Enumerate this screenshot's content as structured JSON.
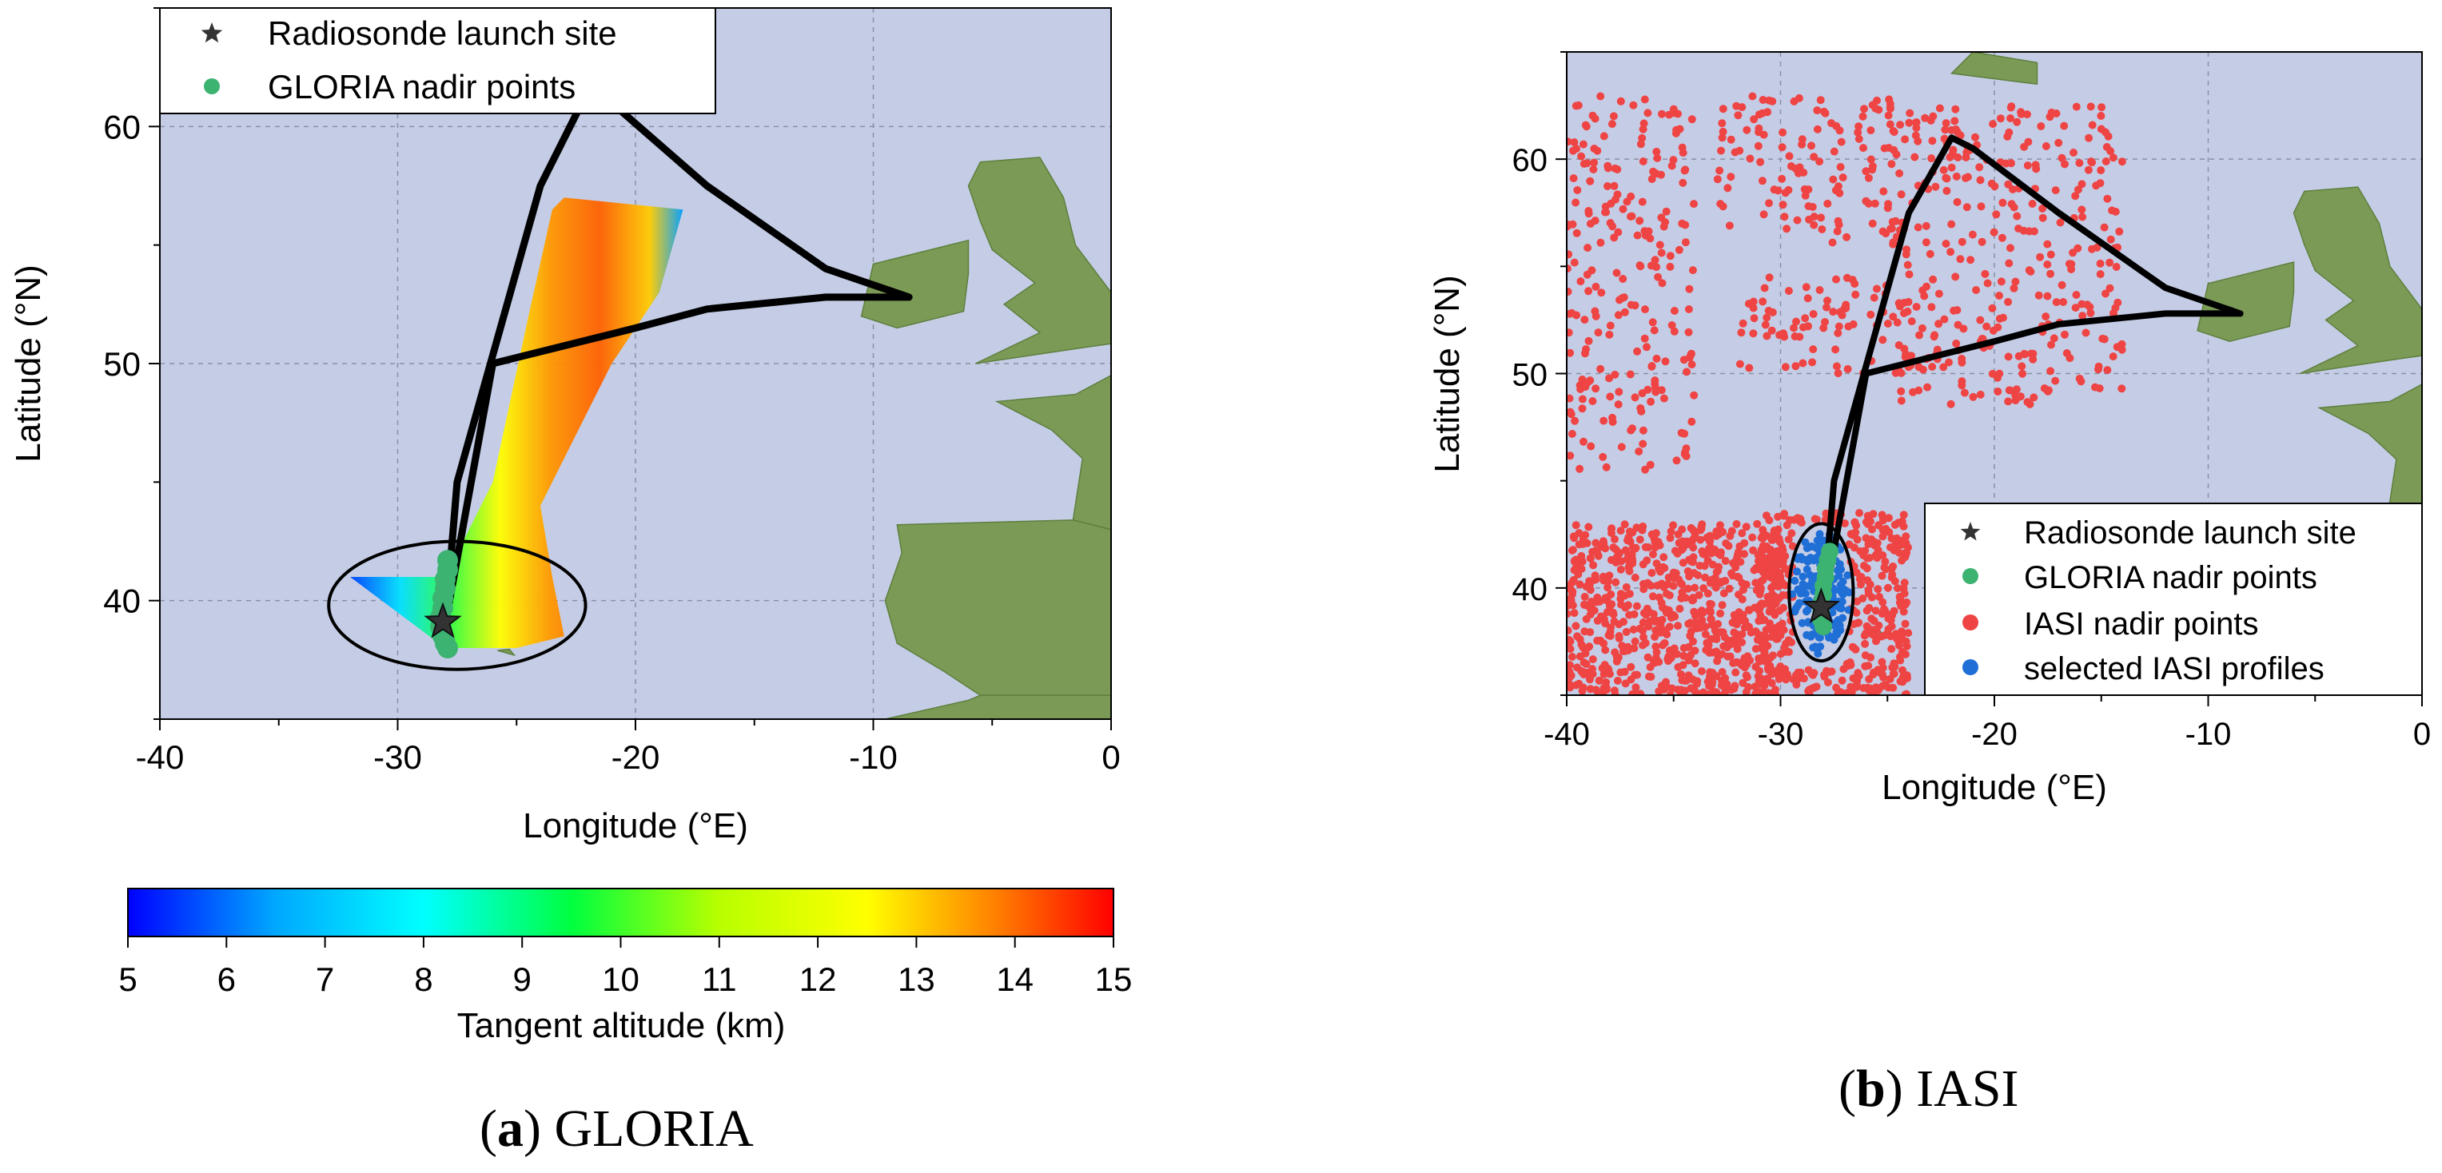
{
  "captions": {
    "a": {
      "letter": "a",
      "name": "GLORIA"
    },
    "b": {
      "letter": "b",
      "name": "IASI"
    }
  },
  "colors": {
    "ocean": "#c5cde6",
    "land": "#7a9a55",
    "track": "#000000",
    "gloria_nadir": "#3cb371",
    "iasi_nadir": "#ef4444",
    "selected_iasi": "#1f6fd6",
    "launch_site": "#333333"
  },
  "chart_data": [
    {
      "type": "scatter",
      "panel": "a",
      "title": "",
      "xlabel": "Longitude (°E)",
      "ylabel": "Latitude (°N)",
      "xlim": [
        -40,
        0
      ],
      "ylim": [
        35,
        65
      ],
      "xticks": [
        -40,
        -30,
        -20,
        -10,
        0
      ],
      "yticks": [
        40,
        50,
        60
      ],
      "grid": true,
      "legend_position": "top-left",
      "flight_track": {
        "lon": [
          -28,
          -27.5,
          -24,
          -22,
          -21,
          -17,
          -12,
          -8.5,
          -12,
          -17,
          -20,
          -26,
          -28
        ],
        "lat": [
          39,
          45,
          57.5,
          61.5,
          61,
          57.5,
          54,
          52.8,
          52.8,
          52.3,
          51.5,
          50,
          39
        ]
      },
      "tangent_swath": {
        "lon": [
          -32,
          -28,
          -26,
          -24.5,
          -23.5,
          -23,
          -18,
          -19,
          -21,
          -22.5,
          -24,
          -23.5,
          -23,
          -25,
          -26.5,
          -28
        ],
        "lat": [
          41,
          41,
          45,
          52,
          56.5,
          57,
          56.5,
          53,
          50,
          47,
          44,
          41,
          38.5,
          38,
          38,
          38
        ]
      },
      "series": [
        {
          "name": "Radiosonde launch site",
          "marker": "star",
          "points": [
            {
              "lon": -28.1,
              "lat": 39.1
            }
          ]
        },
        {
          "name": "GLORIA nadir points",
          "marker": "circle",
          "points": [
            {
              "lon": -27.9,
              "lat": 41.7
            },
            {
              "lon": -27.9,
              "lat": 41.3
            },
            {
              "lon": -28.0,
              "lat": 40.9
            },
            {
              "lon": -28.0,
              "lat": 40.5
            },
            {
              "lon": -28.1,
              "lat": 40.1
            },
            {
              "lon": -28.1,
              "lat": 39.7
            },
            {
              "lon": -28.2,
              "lat": 39.3
            },
            {
              "lon": -28.2,
              "lat": 38.9
            },
            {
              "lon": -28.1,
              "lat": 38.5
            },
            {
              "lon": -28.0,
              "lat": 38.2
            },
            {
              "lon": -27.9,
              "lat": 38.0
            }
          ]
        }
      ],
      "highlight_ellipse": {
        "center_lon": -27.5,
        "center_lat": 39.8,
        "radius_lon": 5.4,
        "radius_lat": 2.7
      },
      "colorbar": {
        "label": "Tangent altitude (km)",
        "min": 5,
        "max": 15,
        "ticks": [
          5,
          6,
          7,
          8,
          9,
          10,
          11,
          12,
          13,
          14,
          15
        ]
      }
    },
    {
      "type": "scatter",
      "panel": "b",
      "title": "",
      "xlabel": "Longitude (°E)",
      "ylabel": "Latitude (°N)",
      "xlim": [
        -40,
        0
      ],
      "ylim": [
        35,
        65
      ],
      "xticks": [
        -40,
        -30,
        -20,
        -10,
        0
      ],
      "yticks": [
        40,
        50,
        60
      ],
      "grid": true,
      "legend_position": "bottom-right",
      "flight_track": {
        "lon": [
          -28,
          -27.5,
          -24,
          -22,
          -21,
          -17,
          -12,
          -8.5,
          -12,
          -17,
          -20,
          -26,
          -28
        ],
        "lat": [
          39,
          45,
          57.5,
          61,
          60.5,
          57.5,
          54,
          52.8,
          52.8,
          52.3,
          51.5,
          50,
          39
        ]
      },
      "iasi_regions": [
        {
          "lon_min": -40,
          "lon_max": -30,
          "lat_min": 35,
          "lat_max": 43
        },
        {
          "lon_min": -31,
          "lon_max": -24,
          "lat_min": 35,
          "lat_max": 43.5
        },
        {
          "lon_min": -33,
          "lon_max": -24.5,
          "lat_min": 56,
          "lat_max": 63
        },
        {
          "lon_min": -32,
          "lon_max": -24,
          "lat_min": 50,
          "lat_max": 54.5
        },
        {
          "lon_min": -25,
          "lon_max": -14,
          "lat_min": 48.5,
          "lat_max": 62.5
        },
        {
          "lon_min": -40,
          "lon_max": -34,
          "lat_min": 45.5,
          "lat_max": 63
        }
      ],
      "series": [
        {
          "name": "Radiosonde launch site",
          "marker": "star",
          "points": [
            {
              "lon": -28.1,
              "lat": 39.1
            }
          ]
        },
        {
          "name": "GLORIA nadir points",
          "marker": "circle",
          "points": [
            {
              "lon": -27.7,
              "lat": 41.7
            },
            {
              "lon": -27.8,
              "lat": 41.3
            },
            {
              "lon": -27.9,
              "lat": 40.9
            },
            {
              "lon": -27.9,
              "lat": 40.5
            },
            {
              "lon": -28.0,
              "lat": 40.1
            },
            {
              "lon": -28.0,
              "lat": 39.7
            },
            {
              "lon": -28.1,
              "lat": 39.3
            },
            {
              "lon": -28.1,
              "lat": 38.9
            },
            {
              "lon": -28.1,
              "lat": 38.5
            },
            {
              "lon": -28.0,
              "lat": 38.2
            }
          ]
        },
        {
          "name": "IASI nadir points",
          "marker": "circle",
          "points": []
        },
        {
          "name": "selected IASI profiles",
          "marker": "circle",
          "points": []
        }
      ],
      "highlight_ellipse": {
        "center_lon": -28.1,
        "center_lat": 39.8,
        "radius_lon": 1.5,
        "radius_lat": 3.2
      }
    }
  ]
}
